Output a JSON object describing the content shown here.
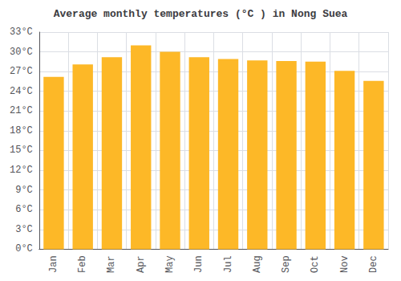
{
  "chart_data": {
    "type": "bar",
    "title": "Average monthly temperatures (°C ) in Nong Suea",
    "categories": [
      "Jan",
      "Feb",
      "Mar",
      "Apr",
      "May",
      "Jun",
      "Jul",
      "Aug",
      "Sep",
      "Oct",
      "Nov",
      "Dec"
    ],
    "values": [
      26.2,
      28.1,
      29.2,
      31.0,
      30.0,
      29.2,
      28.9,
      28.7,
      28.6,
      28.5,
      27.1,
      25.6
    ],
    "color": "#FDB827",
    "ylim": [
      0,
      33
    ],
    "yticks": [
      {
        "value": 0,
        "label": "0°C"
      },
      {
        "value": 3,
        "label": "3°C"
      },
      {
        "value": 6,
        "label": "6°C"
      },
      {
        "value": 9,
        "label": "9°C"
      },
      {
        "value": 12,
        "label": "12°C"
      },
      {
        "value": 15,
        "label": "15°C"
      },
      {
        "value": 18,
        "label": "18°C"
      },
      {
        "value": 21,
        "label": "21°C"
      },
      {
        "value": 24,
        "label": "24°C"
      },
      {
        "value": 27,
        "label": "27°C"
      },
      {
        "value": 30,
        "label": "30°C"
      },
      {
        "value": 33,
        "label": "33°C"
      }
    ],
    "grid": true
  }
}
